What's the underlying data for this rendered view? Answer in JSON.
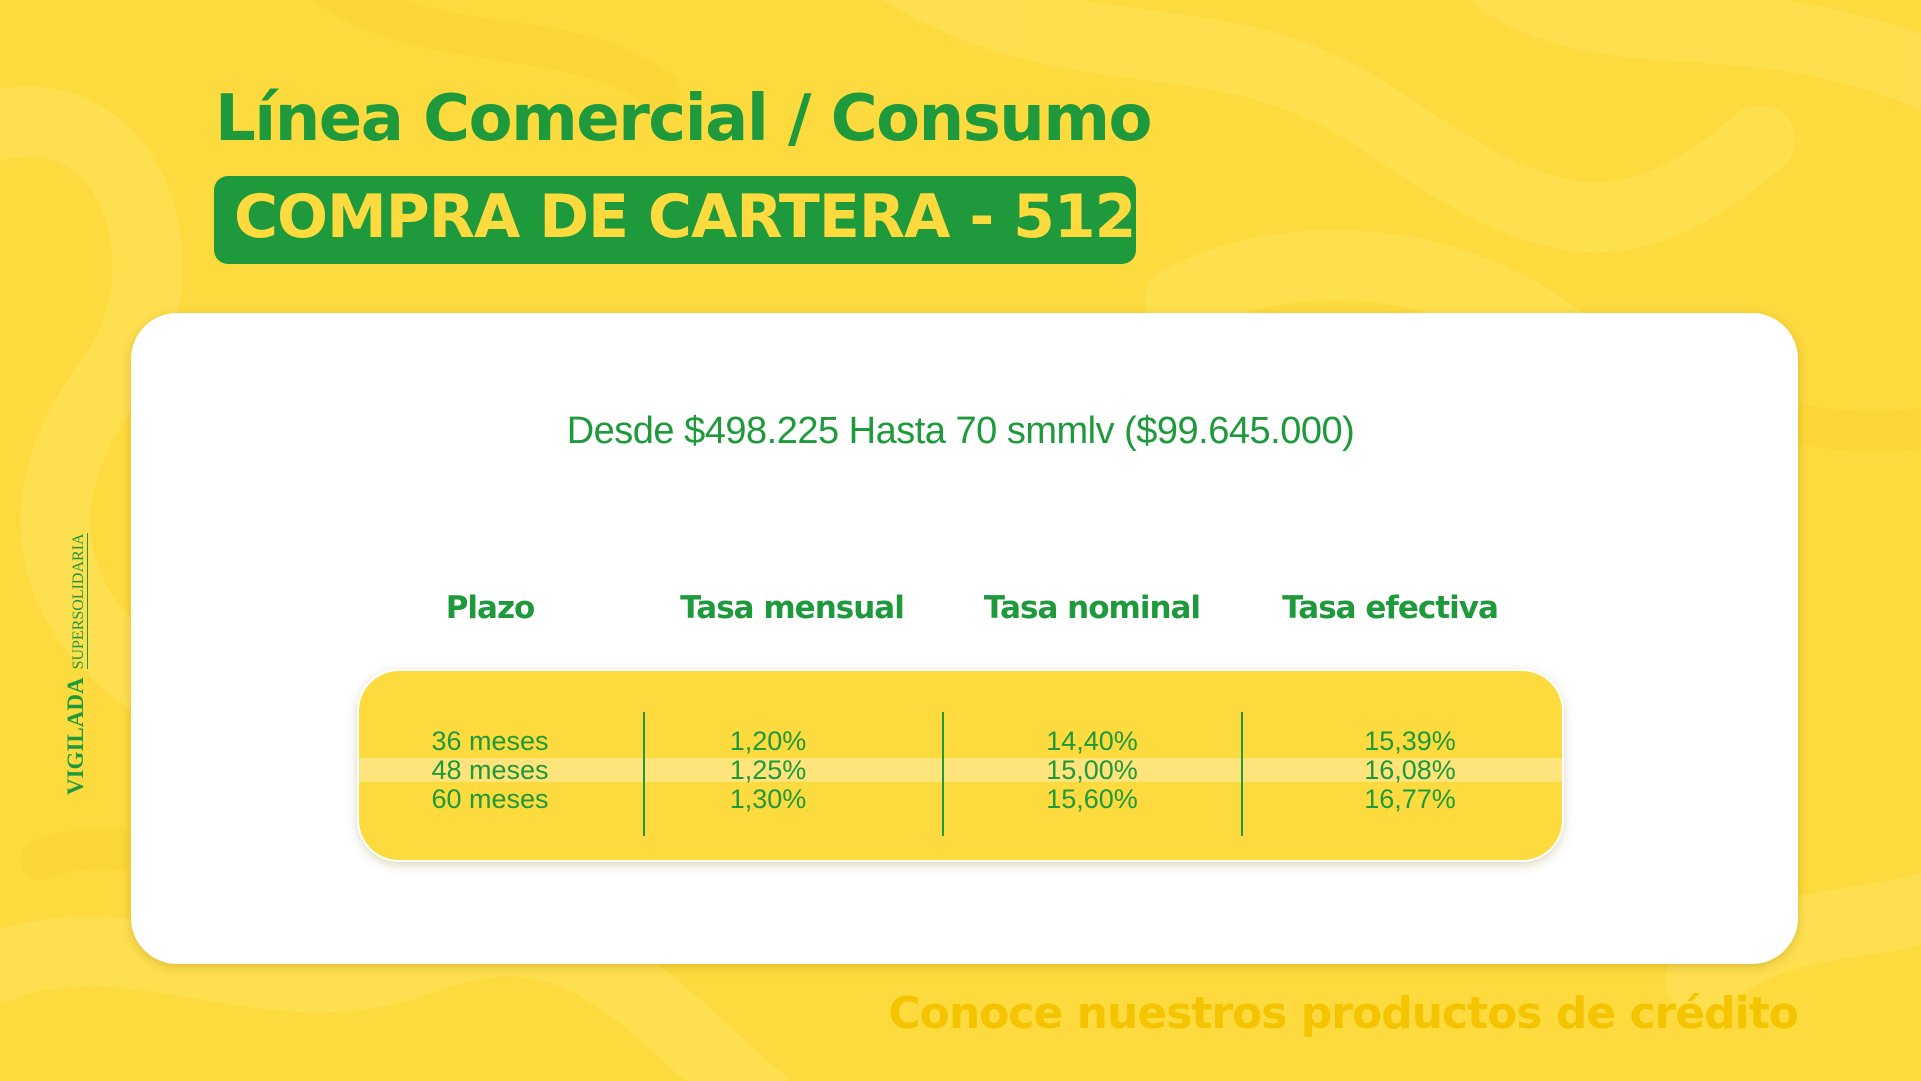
{
  "header": {
    "title": "Línea Comercial / Consumo",
    "subtitle": "COMPRA DE CARTERA - 512"
  },
  "watermark": {
    "vigilada": "VIGILADA",
    "entity": "SUPERSOLIDARIA"
  },
  "card": {
    "range_text": "Desde $498.225 Hasta 70 smmlv ($99.645.000)",
    "table": {
      "headers": [
        "Plazo",
        "Tasa mensual",
        "Tasa nominal",
        "Tasa efectiva"
      ],
      "rows": [
        [
          "36 meses",
          "1,20%",
          "14,40%",
          "15,39%"
        ],
        [
          "48 meses",
          "1,25%",
          "15,00%",
          "16,08%"
        ],
        [
          "60 meses",
          "1,30%",
          "15,60%",
          "16,77%"
        ]
      ]
    }
  },
  "footer": {
    "text": "Conoce nuestros productos de crédito"
  },
  "colors": {
    "background": "#FDDA3E",
    "brand_green": "#1E9A3C",
    "card": "#FFFFFF",
    "footer_text": "#F5C400"
  }
}
